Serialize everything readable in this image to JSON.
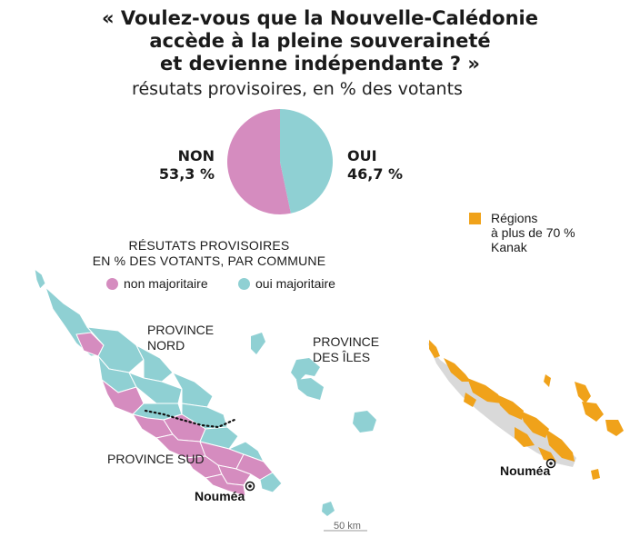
{
  "title": {
    "line1": "« Voulez-vous que la Nouvelle-Calédonie",
    "line2": "accède à la pleine souveraineté",
    "line3": "et devienne indépendante ? »",
    "subtitle": "résutats provisoires, en % des votants"
  },
  "results": {
    "non": {
      "label": "NON",
      "value_text": "53,3 %",
      "value": 53.3,
      "color": "#d58cbf"
    },
    "oui": {
      "label": "OUI",
      "value_text": "46,7 %",
      "value": 46.7,
      "color": "#8fd0d3"
    }
  },
  "commune_map": {
    "title_line1": "RÉSUTATS PROVISOIRES",
    "title_line2": "EN % DES VOTANTS, PAR COMMUNE",
    "legend": [
      {
        "label": "non majoritaire",
        "color": "#d58cbf"
      },
      {
        "label": "oui majoritaire",
        "color": "#8fd0d3"
      }
    ],
    "labels": {
      "province_nord_1": "PROVINCE",
      "province_nord_2": "NORD",
      "province_iles_1": "PROVINCE",
      "province_iles_2": "DES ÎLES",
      "province_sud": "PROVINCE SUD",
      "city": "Nouméa"
    },
    "scale": "50 km"
  },
  "kanak_map": {
    "legend_line1": "Régions",
    "legend_line2": "à plus de 70 %",
    "legend_line3": "Kanak",
    "color": "#f0a21a",
    "base_color": "#d9d9d9",
    "city": "Nouméa"
  }
}
